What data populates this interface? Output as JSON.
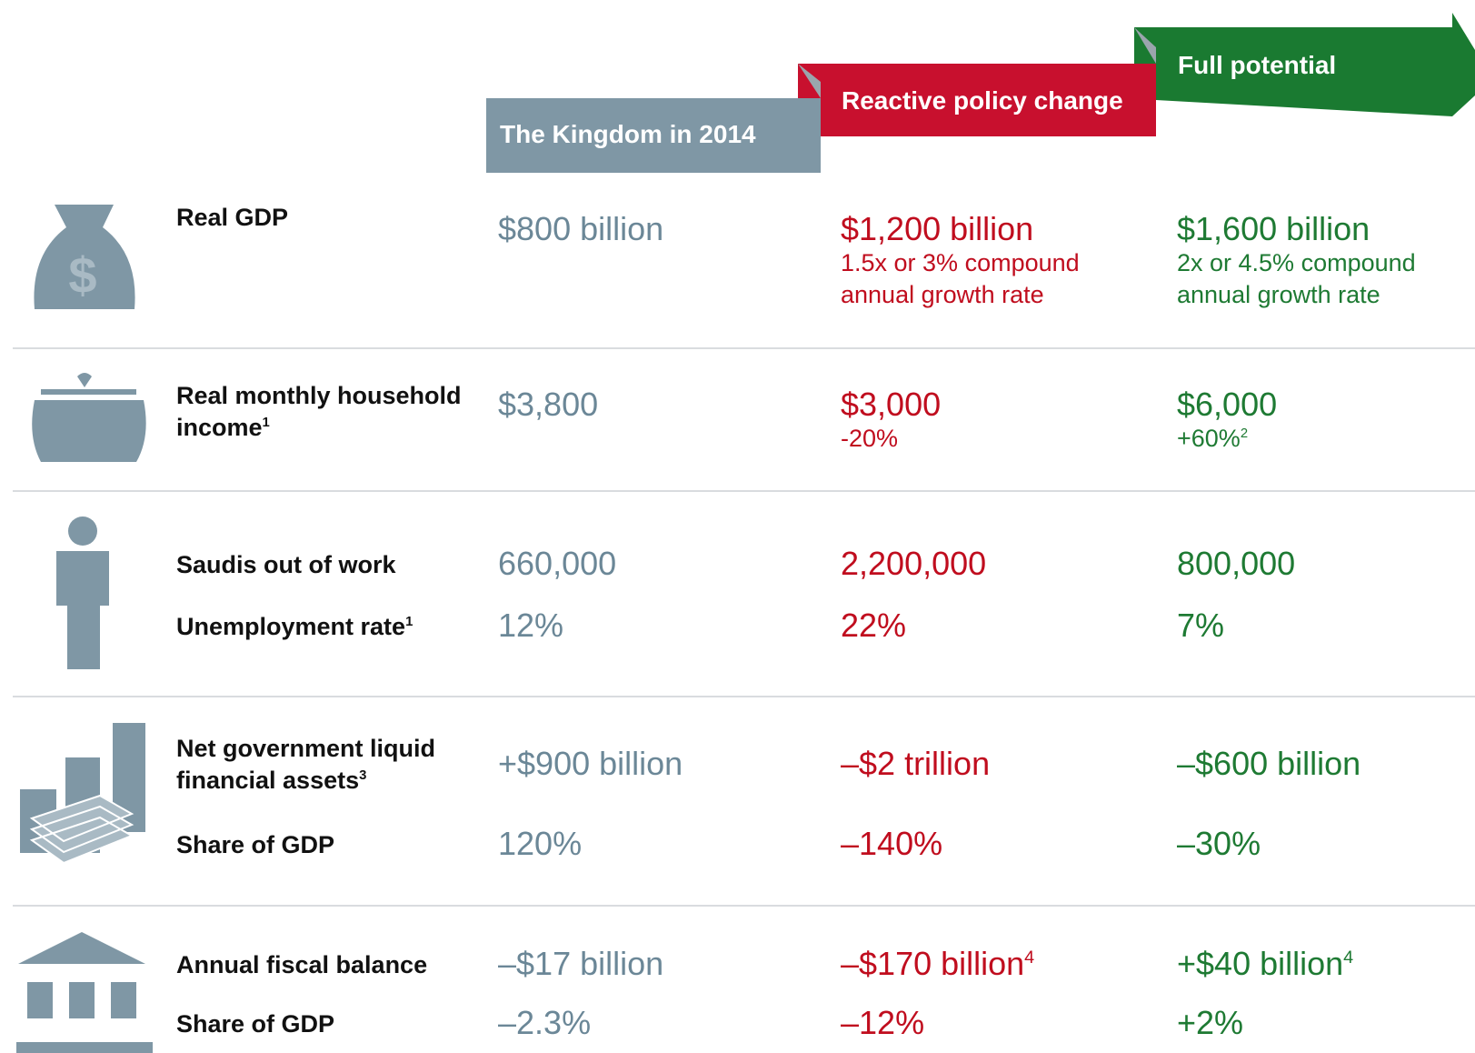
{
  "headers": [
    "The Kingdom in 2014",
    "Reactive policy change",
    "Full potential"
  ],
  "rows": [
    {
      "lines": [
        {
          "label": "Real GDP",
          "cells": [
            {
              "text": "$800 billion"
            },
            {
              "text": "$1,200 billion",
              "sub": "1.5x or 3% compound annual growth rate"
            },
            {
              "text": "$1,600 billion",
              "sub": "2x or 4.5% compound annual growth rate"
            }
          ]
        }
      ]
    },
    {
      "lines": [
        {
          "label": "Real monthly household income",
          "label_note": "1",
          "cells": [
            {
              "text": "$3,800"
            },
            {
              "text": "$3,000",
              "sub": "-20%"
            },
            {
              "text": "$6,000",
              "sub": "+60%",
              "sub_note": "2"
            }
          ]
        }
      ]
    },
    {
      "lines": [
        {
          "label": "Saudis out of work",
          "cells": [
            {
              "text": "660,000"
            },
            {
              "text": "2,200,000"
            },
            {
              "text": "800,000"
            }
          ]
        },
        {
          "label": "Unemployment rate",
          "label_note": "1",
          "cells": [
            {
              "text": "12%"
            },
            {
              "text": "22%"
            },
            {
              "text": "7%"
            }
          ]
        }
      ]
    },
    {
      "lines": [
        {
          "label": "Net government liquid financial assets",
          "label_note": "3",
          "cells": [
            {
              "text": "+$900 billion"
            },
            {
              "text": "–$2 trillion"
            },
            {
              "text": "–$600 billion"
            }
          ]
        },
        {
          "label": "Share of GDP",
          "cells": [
            {
              "text": "120%"
            },
            {
              "text": "–140%"
            },
            {
              "text": "–30%"
            }
          ]
        }
      ]
    },
    {
      "lines": [
        {
          "label": "Annual fiscal balance",
          "cells": [
            {
              "text": "–$17 billion"
            },
            {
              "text": "–$170 billion",
              "note": "4"
            },
            {
              "text": "+$40 billion",
              "note": "4"
            }
          ]
        },
        {
          "label": "Share of GDP",
          "cells": [
            {
              "text": "–2.3%"
            },
            {
              "text": "–12%"
            },
            {
              "text": "+2%"
            }
          ]
        }
      ]
    }
  ]
}
